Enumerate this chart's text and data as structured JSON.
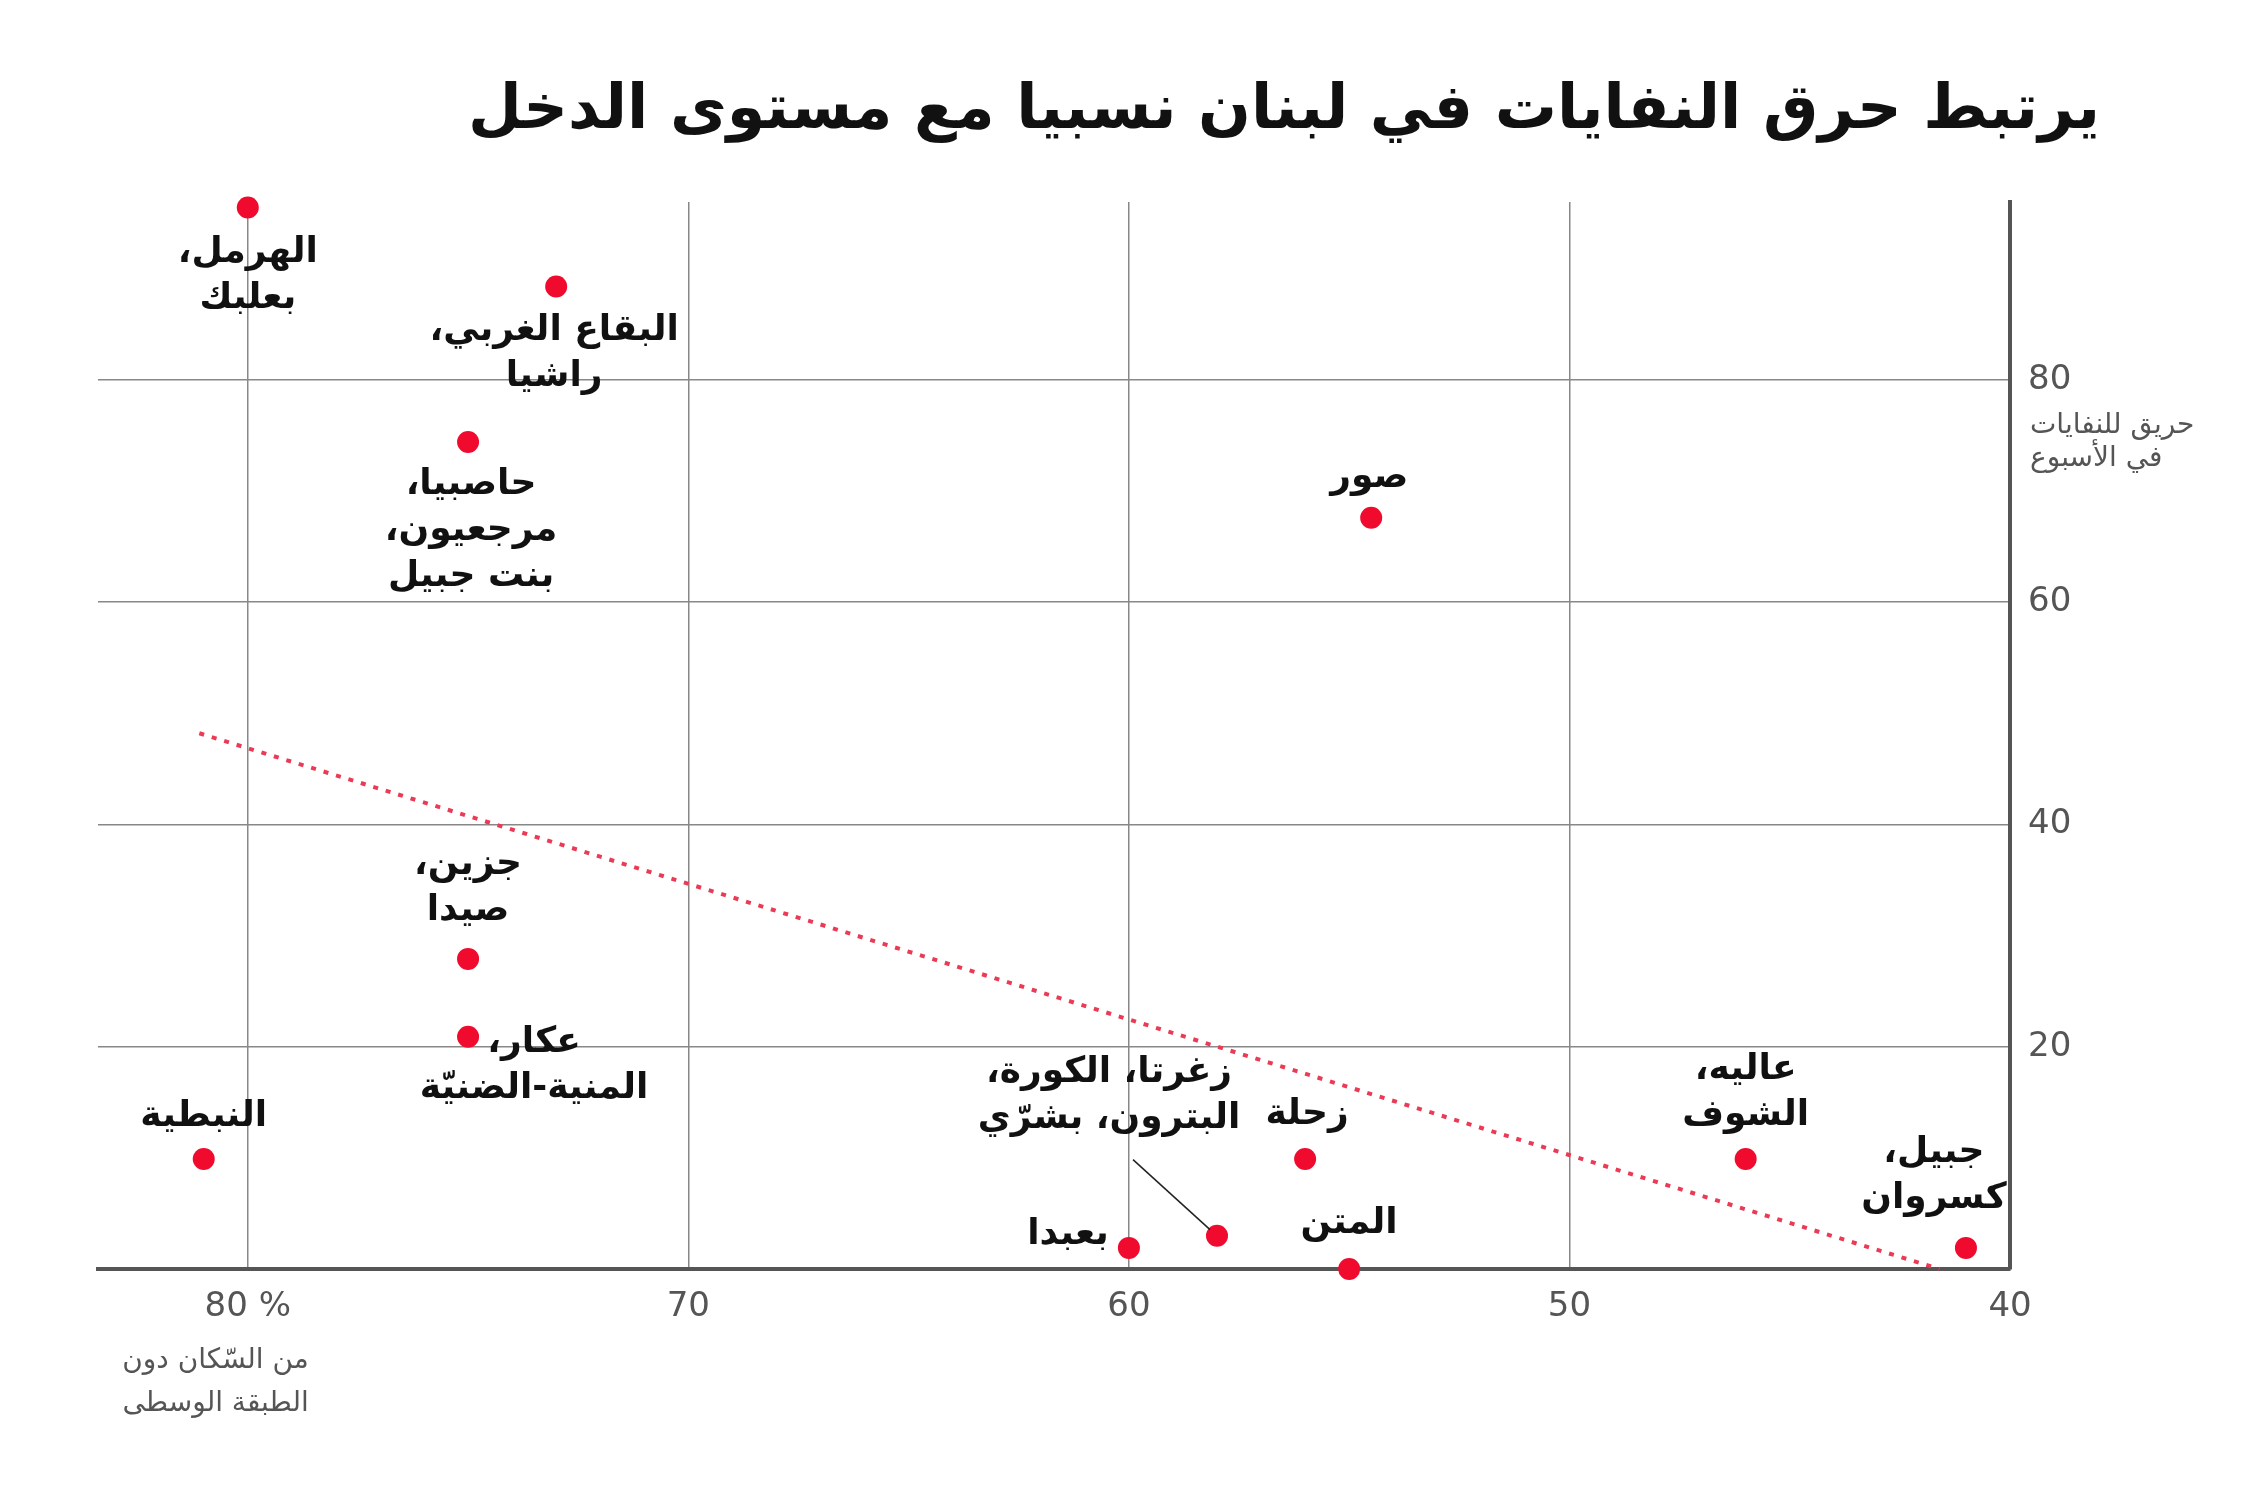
{
  "chart_data": {
    "type": "scatter",
    "title": "يرتبط حرق النفايات في لبنان نسبيا مع مستوى الدخل",
    "xlabel": "من السّكان دون\nالطبقة الوسطى",
    "ylabel": "حريق للنفايات\nفي الأسبوع",
    "xlim": [
      83.4,
      40
    ],
    "ylim": [
      0,
      96
    ],
    "xticks": [
      {
        "value": 80,
        "label": "80 %"
      },
      70,
      60,
      50,
      40
    ],
    "yticks": [
      20,
      40,
      60,
      80
    ],
    "grid": true,
    "legend": false,
    "marker": "circle",
    "series": [
      {
        "type": "scatter",
        "color": "#ef0a2e",
        "x": [
          80,
          73,
          75,
          54.5,
          75,
          75,
          81,
          60,
          58,
          56,
          55,
          46,
          41
        ],
        "values": [
          95.5,
          88.4,
          74.4,
          67.6,
          27.9,
          20.9,
          9.9,
          1.9,
          3,
          9.9,
          0,
          9.9,
          1.9
        ]
      },
      {
        "type": "line",
        "color": "#ea3a55",
        "line_style": "dotted",
        "marker": "none",
        "x": [
          81.1,
          41.6
        ],
        "values": [
          48.2,
          0
        ]
      }
    ],
    "annotations": [
      {
        "text": "الهرمل،\nبعلبك",
        "x": 80,
        "y": 95.5
      },
      {
        "text": "البقاع الغربي،\nراشيا",
        "x": 73,
        "y": 88.4
      },
      {
        "text": "حاصبيا،\nمرجعيون،\nبنت جبيل",
        "x": 75,
        "y": 74.4
      },
      {
        "text": "صور",
        "x": 54.5,
        "y": 67.6
      },
      {
        "text": "جزين،\nصيدا",
        "x": 75,
        "y": 27.9
      },
      {
        "text": "عكار،\nالمنية-الضنيّة",
        "x": 75,
        "y": 20.9
      },
      {
        "text": "النبطية",
        "x": 81,
        "y": 9.9
      },
      {
        "text": "بعبدا",
        "x": 60,
        "y": 1.9
      },
      {
        "text": "زغرتا، الكورة،\nالبترون، بشرّي",
        "x": 58,
        "y": 3
      },
      {
        "text": "زحلة",
        "x": 56,
        "y": 9.9
      },
      {
        "text": "المتن",
        "x": 55,
        "y": 0
      },
      {
        "text": "عاليه،\nالشوف",
        "x": 46,
        "y": 9.9
      },
      {
        "text": "جبيل،\nكسروان",
        "x": 41,
        "y": 1.9
      }
    ]
  }
}
